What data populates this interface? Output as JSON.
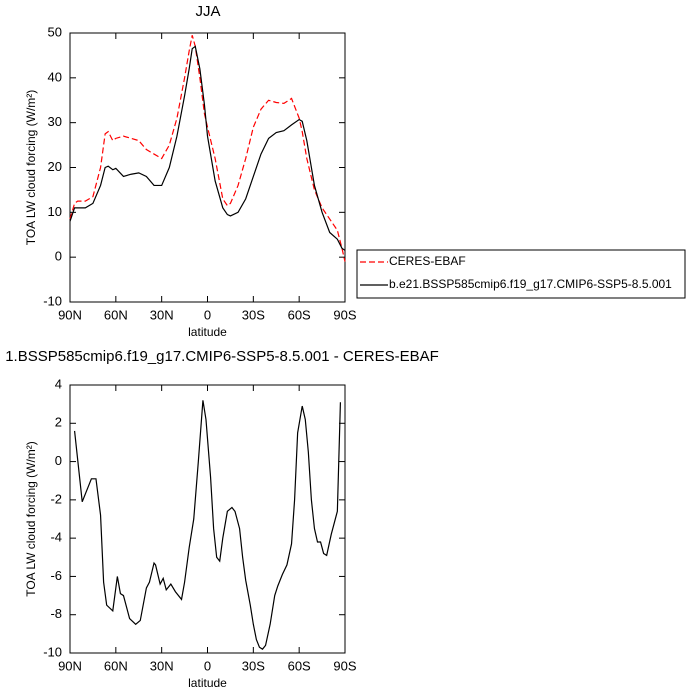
{
  "chart_data": [
    {
      "type": "line",
      "title": "JJA",
      "xlabel": "latitude",
      "ylabel": "TOA LW cloud forcing (W/m²)",
      "x": [
        90,
        87,
        85,
        80,
        75,
        70,
        67,
        65,
        62,
        60,
        55,
        50,
        45,
        40,
        35,
        30,
        25,
        20,
        15,
        12,
        10,
        8,
        5,
        2,
        0,
        -5,
        -10,
        -13,
        -15,
        -20,
        -25,
        -30,
        -35,
        -40,
        -45,
        -50,
        -55,
        -60,
        -62,
        -65,
        -70,
        -75,
        -80,
        -85,
        -88,
        -90
      ],
      "series": [
        {
          "name": "CERES-EBAF",
          "color": "#ff0000",
          "linestyle": "dashed",
          "values": [
            8.5,
            12,
            12.5,
            12.5,
            13.5,
            20,
            27.5,
            28,
            26,
            26.5,
            27,
            26.5,
            26,
            24,
            23,
            22,
            25,
            31,
            40,
            46,
            49.5,
            47,
            40,
            32,
            29,
            22,
            13,
            11.5,
            12,
            16,
            22,
            29,
            33,
            35,
            34.5,
            34.3,
            35.4,
            31,
            28,
            22,
            15,
            11,
            8.5,
            6,
            2,
            -1
          ]
        },
        {
          "name": "b.e21.BSSP585cmip6.f19_g17.CMIP6-SSP5-8.5.001",
          "color": "#000000",
          "linestyle": "solid",
          "values": [
            8,
            11,
            11,
            11,
            12,
            16,
            20,
            20.3,
            19.5,
            19.8,
            18,
            18.5,
            18.8,
            18,
            16,
            16,
            20,
            27,
            36,
            42,
            46.5,
            47,
            42,
            34,
            27,
            17,
            11,
            9.5,
            9.2,
            10,
            13,
            18,
            23,
            26.5,
            27.8,
            28.2,
            29.5,
            30.7,
            30.3,
            26,
            16,
            10,
            5.5,
            4,
            2,
            1.5
          ]
        }
      ],
      "xlim": [
        90,
        -90
      ],
      "xticks": [
        {
          "value": 90,
          "label": "90N"
        },
        {
          "value": 60,
          "label": "60N"
        },
        {
          "value": 30,
          "label": "30N"
        },
        0,
        {
          "value": -30,
          "label": "30S"
        },
        {
          "value": -60,
          "label": "60S"
        },
        {
          "value": -90,
          "label": "90S"
        }
      ],
      "ylim": [
        -10,
        50
      ],
      "yticks": [
        -10,
        0,
        10,
        20,
        30,
        40,
        50
      ],
      "legend": "right",
      "grid": false
    },
    {
      "type": "line",
      "title": "1.BSSP585cmip6.f19_g17.CMIP6-SSP5-8.5.001 - CERES-EBAF",
      "xlabel": "latitude",
      "ylabel": "TOA LW cloud forcing (W/m²)",
      "x": [
        87,
        82,
        76,
        73,
        70,
        68,
        66,
        62,
        59,
        57,
        55,
        51,
        47,
        44,
        40,
        38,
        35,
        34,
        31,
        29,
        27,
        24,
        21,
        17,
        15,
        12,
        9,
        6,
        3,
        1,
        -2,
        -4,
        -6,
        -8,
        -10,
        -13,
        -16,
        -18,
        -21,
        -23,
        -25,
        -28,
        -30,
        -32,
        -34,
        -36,
        -38,
        -41,
        -44,
        -46,
        -49,
        -52,
        -55,
        -57,
        -59,
        -62,
        -64,
        -66,
        -68,
        -70,
        -72,
        -74,
        -76,
        -78,
        -81,
        -83,
        -85,
        -87
      ],
      "series": [
        {
          "name": null,
          "color": "#000000",
          "linestyle": "solid",
          "values": [
            1.6,
            -2.1,
            -0.9,
            -0.9,
            -2.8,
            -6.3,
            -7.5,
            -7.8,
            -6.0,
            -6.9,
            -7.0,
            -8.2,
            -8.5,
            -8.3,
            -6.6,
            -6.3,
            -5.3,
            -5.4,
            -6.4,
            -6.1,
            -6.7,
            -6.4,
            -6.8,
            -7.2,
            -6.3,
            -4.5,
            -3.0,
            0.0,
            3.2,
            2.2,
            -0.8,
            -3.5,
            -5.0,
            -5.2,
            -4.0,
            -2.6,
            -2.4,
            -2.6,
            -3.5,
            -5.0,
            -6.2,
            -7.5,
            -8.5,
            -9.3,
            -9.7,
            -9.8,
            -9.6,
            -8.5,
            -7.0,
            -6.5,
            -5.9,
            -5.4,
            -4.3,
            -2.0,
            1.5,
            2.9,
            2.2,
            0.5,
            -2.0,
            -3.5,
            -4.2,
            -4.2,
            -4.8,
            -4.9,
            -3.8,
            -3.2,
            -2.6,
            3.1
          ]
        }
      ],
      "xlim": [
        90,
        -90
      ],
      "xticks": [
        {
          "value": 90,
          "label": "90N"
        },
        {
          "value": 60,
          "label": "60N"
        },
        {
          "value": 30,
          "label": "30N"
        },
        0,
        {
          "value": -30,
          "label": "30S"
        },
        {
          "value": -60,
          "label": "60S"
        },
        {
          "value": -90,
          "label": "90S"
        }
      ],
      "ylim": [
        -10,
        4
      ],
      "yticks": [
        -10,
        -8,
        -6,
        -4,
        -2,
        0,
        2,
        4
      ],
      "grid": false
    }
  ]
}
